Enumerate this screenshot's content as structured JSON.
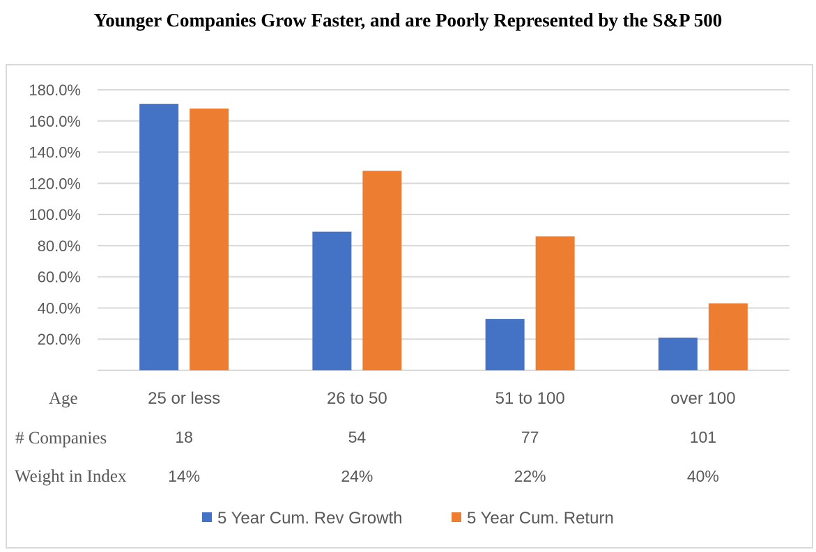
{
  "title": "Younger Companies Grow Faster, and are Poorly Represented by the S&P 500",
  "table_rows": {
    "age_label": "Age",
    "companies_label": "# Companies",
    "weight_label": "Weight in Index",
    "companies": [
      "18",
      "54",
      "77",
      "101"
    ],
    "weights": [
      "14%",
      "24%",
      "22%",
      "40%"
    ]
  },
  "colors": {
    "series1": "#4472c4",
    "series2": "#ed7d31",
    "grid": "#d9d9d9",
    "tick": "#595959"
  },
  "chart_data": {
    "type": "bar",
    "title": "Younger Companies Grow Faster, and are Poorly Represented by the S&P 500",
    "categories": [
      "25 or less",
      "26 to 50",
      "51 to 100",
      "over 100"
    ],
    "series": [
      {
        "name": "5 Year Cum. Rev Growth",
        "values": [
          171,
          89,
          33,
          21
        ]
      },
      {
        "name": "5 Year Cum. Return",
        "values": [
          168,
          128,
          86,
          43
        ]
      }
    ],
    "ylim": [
      0,
      180
    ],
    "yticks": [
      20,
      40,
      60,
      80,
      100,
      120,
      140,
      160,
      180
    ],
    "ytick_labels": [
      "20.0%",
      "40.0%",
      "60.0%",
      "80.0%",
      "100.0%",
      "120.0%",
      "140.0%",
      "160.0%",
      "180.0%"
    ],
    "grid": true,
    "legend": "bottom"
  }
}
